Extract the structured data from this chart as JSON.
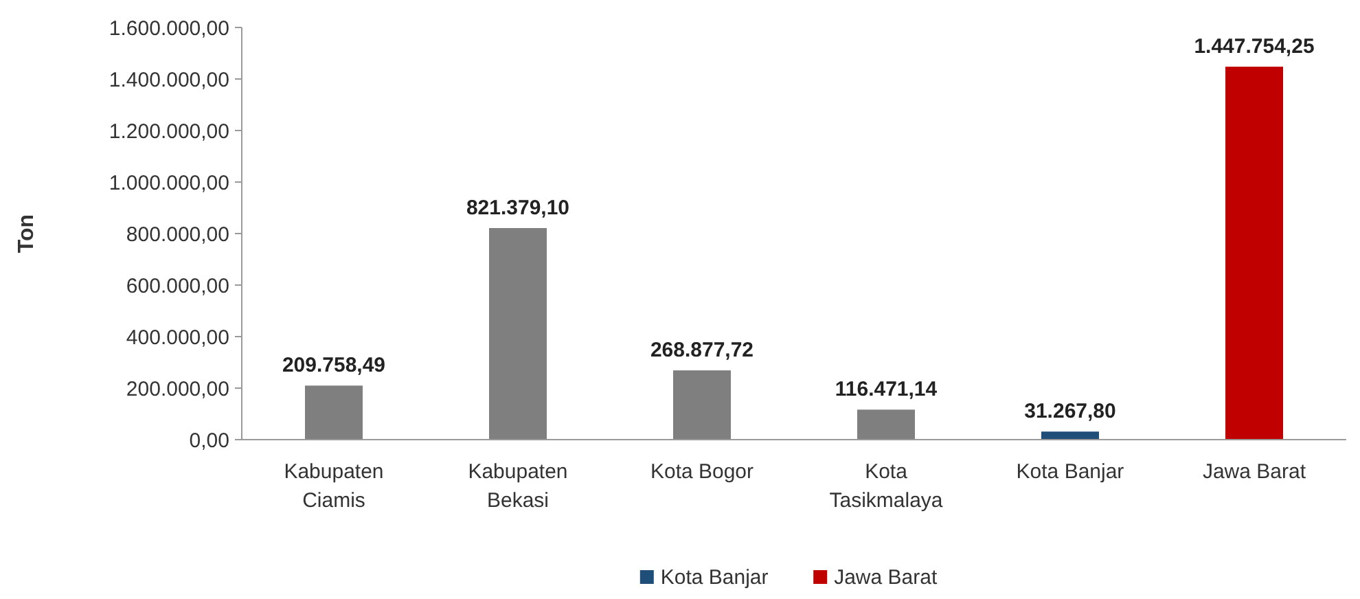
{
  "chart_data": {
    "type": "bar",
    "stacked": true,
    "ylabel": "Ton",
    "categories": [
      "Kabupaten Ciamis",
      "Kabupaten Bekasi",
      "Kota Bogor",
      "Kota Tasikmalaya",
      "Kota Banjar",
      "Jawa Barat"
    ],
    "series": [
      {
        "color": "#7f7f7f",
        "values": [
          209758.49,
          821379.1,
          268877.72,
          116471.14,
          null,
          null
        ],
        "value_labels": [
          "209.758,49",
          "821.379,10",
          "268.877,72",
          "116.471,14",
          null,
          null
        ]
      },
      {
        "name": "Kota Banjar",
        "color": "#1f4e79",
        "values": [
          null,
          null,
          null,
          null,
          31267.8,
          null
        ],
        "value_labels": [
          null,
          null,
          null,
          null,
          "31.267,80",
          null
        ]
      },
      {
        "name": "Jawa Barat",
        "color": "#c00000",
        "values": [
          null,
          null,
          null,
          null,
          null,
          1447754.25
        ],
        "value_labels": [
          null,
          null,
          null,
          null,
          null,
          "1.447.754,25"
        ]
      }
    ],
    "ylim": [
      0,
      1600000
    ],
    "yticks": [
      {
        "value": 0,
        "label": "0,00"
      },
      {
        "value": 200000,
        "label": "200.000,00"
      },
      {
        "value": 400000,
        "label": "400.000,00"
      },
      {
        "value": 600000,
        "label": "600.000,00"
      },
      {
        "value": 800000,
        "label": "800.000,00"
      },
      {
        "value": 1000000,
        "label": "1.000.000,00"
      },
      {
        "value": 1200000,
        "label": "1.200.000,00"
      },
      {
        "value": 1400000,
        "label": "1.400.000,00"
      },
      {
        "value": 1600000,
        "label": "1.600.000,00"
      }
    ],
    "legend": "bottom"
  }
}
